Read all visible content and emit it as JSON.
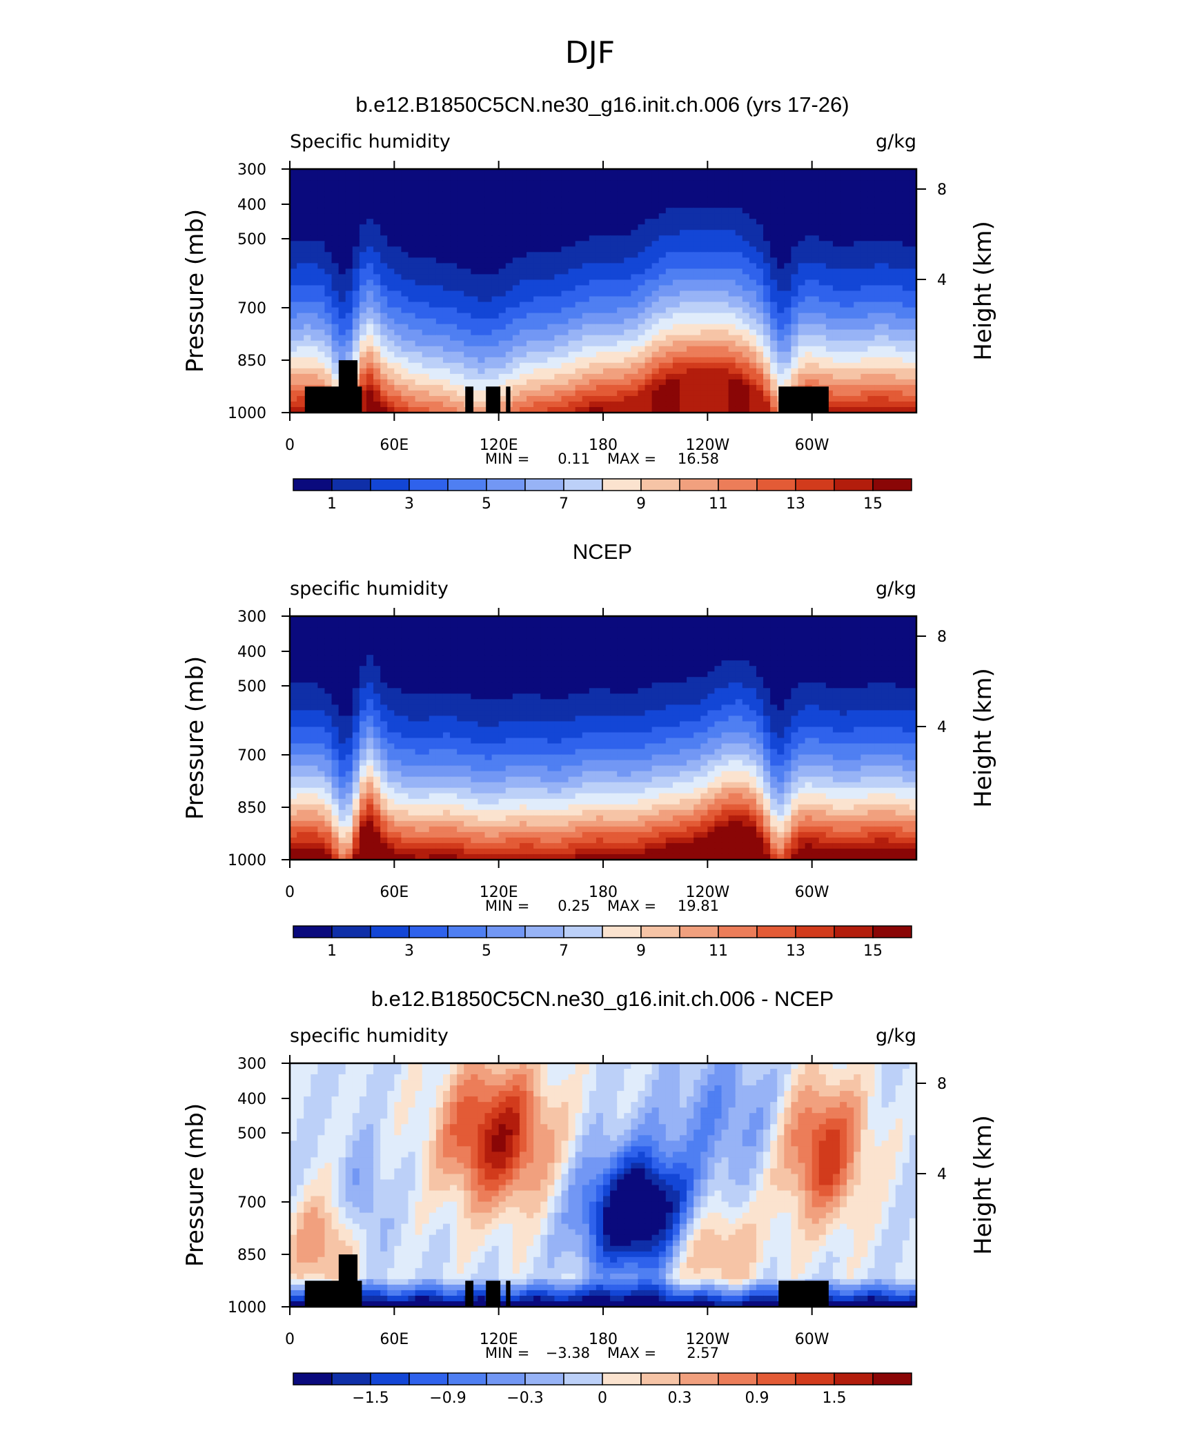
{
  "figure_title": "DJF",
  "chart_data": [
    {
      "type": "heatmap",
      "title": "b.e12.B1850C5CN.ne30_g16.init.ch.006 (yrs 17-26)",
      "left_string": "Specific humidity",
      "right_string": "g/kg",
      "ylabel": "Pressure (mb)",
      "y2label": "Height (km)",
      "x_ticks": [
        "0",
        "60E",
        "120E",
        "180",
        "120W",
        "60W"
      ],
      "y_ticks": [
        "300",
        "400",
        "500",
        "700",
        "850",
        "1000"
      ],
      "y2_ticks": [
        "8",
        "4"
      ],
      "stats": {
        "min_label": "MIN =",
        "min": "0.11",
        "max_label": "MAX =",
        "max": "16.58"
      },
      "colorbar_labels": [
        "1",
        "3",
        "5",
        "7",
        "9",
        "11",
        "13",
        "15"
      ],
      "field": "mean",
      "variant": 0
    },
    {
      "type": "heatmap",
      "title": "NCEP",
      "left_string": "specific humidity",
      "right_string": "g/kg",
      "ylabel": "Pressure (mb)",
      "y2label": "Height (km)",
      "x_ticks": [
        "0",
        "60E",
        "120E",
        "180",
        "120W",
        "60W"
      ],
      "y_ticks": [
        "300",
        "400",
        "500",
        "700",
        "850",
        "1000"
      ],
      "y2_ticks": [
        "8",
        "4"
      ],
      "stats": {
        "min_label": "MIN =",
        "min": "0.25",
        "max_label": "MAX =",
        "max": "19.81"
      },
      "colorbar_labels": [
        "1",
        "3",
        "5",
        "7",
        "9",
        "11",
        "13",
        "15"
      ],
      "field": "mean",
      "variant": 1
    },
    {
      "type": "heatmap",
      "title": "b.e12.B1850C5CN.ne30_g16.init.ch.006 - NCEP",
      "left_string": "specific humidity",
      "right_string": "g/kg",
      "ylabel": "Pressure (mb)",
      "y2label": "Height (km)",
      "x_ticks": [
        "0",
        "60E",
        "120E",
        "180",
        "120W",
        "60W"
      ],
      "y_ticks": [
        "300",
        "400",
        "500",
        "700",
        "850",
        "1000"
      ],
      "y2_ticks": [
        "8",
        "4"
      ],
      "stats": {
        "min_label": "MIN =",
        "min": "−3.38",
        "max_label": "MAX =",
        "max": "2.57"
      },
      "colorbar_labels": [
        "−1.5",
        "−0.9",
        "−0.3",
        "0",
        "0.3",
        "0.9",
        "1.5"
      ],
      "field": "difference",
      "variant": 2
    }
  ],
  "colors": {
    "mean_scale": [
      "#0a0a7d",
      "#0f2fa8",
      "#1346d6",
      "#2f62ec",
      "#4f7ff2",
      "#7297f4",
      "#97b3f6",
      "#bcd0f8",
      "#e0ecfb",
      "#fbe3cf",
      "#f6c4a6",
      "#f1a07e",
      "#ec7d59",
      "#e35b36",
      "#d23b1c",
      "#b31d0c",
      "#8a0606"
    ],
    "diff_scale": [
      "#0a0a7d",
      "#0f2fa8",
      "#1346d6",
      "#2f62ec",
      "#4f7ff2",
      "#7297f4",
      "#97b3f6",
      "#bcd0f8",
      "#e0ecfb",
      "#fbe3cf",
      "#f6c4a6",
      "#f1a07e",
      "#ec7d59",
      "#e35b36",
      "#d23b1c",
      "#b31d0c",
      "#8a0606"
    ],
    "terrain": "#000000"
  }
}
